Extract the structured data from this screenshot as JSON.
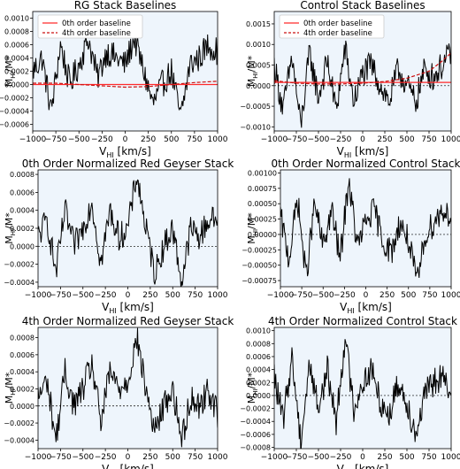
{
  "chart_data": [
    {
      "type": "line",
      "title": "RG Stack Baselines",
      "xlabel": "V",
      "xlabel_sub": "HI",
      "xlabel_unit": " [km/s]",
      "ylabel": "M",
      "ylabel_sub": "HI",
      "ylabel_unit": "/M*",
      "xlim": [
        -1000,
        1000
      ],
      "ylim": [
        -0.0007,
        0.0011
      ],
      "xticks": [
        -1000,
        -750,
        -500,
        -250,
        0,
        250,
        500,
        750,
        1000
      ],
      "yticks": [
        -0.0006,
        -0.0004,
        -0.0002,
        0.0,
        0.0002,
        0.0004,
        0.0006,
        0.0008,
        0.001
      ],
      "ytick_labels": [
        "−0.0006",
        "−0.0004",
        "−0.0002",
        "0.0000",
        "0.0002",
        "0.0004",
        "0.0006",
        "0.0008",
        "0.0010"
      ],
      "grid": false,
      "background": "#eef5fc",
      "zero_line": true,
      "legend": {
        "placement": "top-left",
        "entries": [
          {
            "label": "0th order baseline",
            "color": "#ff2a2a",
            "dash": false
          },
          {
            "label": "4th order baseline",
            "color": "#cc1111",
            "dash": true
          }
        ]
      },
      "baselines": [
        {
          "name": "0th order baseline",
          "color": "#ff2a2a",
          "dash": false,
          "x": [
            -1000,
            1000
          ],
          "y": [
            0.0,
            0.0
          ]
        },
        {
          "name": "4th order baseline",
          "color": "#cc1111",
          "dash": true,
          "x": [
            -1000,
            -750,
            -500,
            -250,
            0,
            250,
            500,
            750,
            1000
          ],
          "y": [
            2e-05,
            2e-05,
            0.0,
            -2e-05,
            -4e-05,
            -3e-05,
            0.0,
            3e-05,
            5e-05
          ]
        }
      ],
      "series": [
        {
          "color": "#000000",
          "x": [
            -1000,
            -900,
            -800,
            -700,
            -600,
            -500,
            -400,
            -300,
            -200,
            -100,
            0,
            100,
            200,
            300,
            400,
            500,
            600,
            700,
            800,
            900,
            1000
          ],
          "y": [
            0.0002,
            0.0004,
            -0.0004,
            0.0006,
            0.0,
            0.0003,
            0.0007,
            0.0001,
            0.0005,
            0.0004,
            0.0003,
            0.0007,
            0.0002,
            -0.0003,
            0.0,
            0.0002,
            -0.0005,
            0.0003,
            0.0004,
            0.0006,
            0.0005
          ]
        }
      ]
    },
    {
      "type": "line",
      "title": "Control Stack Baselines",
      "xlabel": "V",
      "xlabel_sub": "HI",
      "xlabel_unit": " [km/s]",
      "ylabel": "M",
      "ylabel_sub": "HI",
      "ylabel_unit": "/M*",
      "xlim": [
        -1000,
        1000
      ],
      "ylim": [
        -0.0011,
        0.0018
      ],
      "xticks": [
        -1000,
        -750,
        -500,
        -250,
        0,
        250,
        500,
        750,
        1000
      ],
      "yticks": [
        -0.001,
        -0.0005,
        0.0,
        0.0005,
        0.001,
        0.0015
      ],
      "ytick_labels": [
        "−0.0010",
        "−0.0005",
        "0.0000",
        "0.0005",
        "0.0010",
        "0.0015"
      ],
      "grid": false,
      "background": "#eef5fc",
      "zero_line": true,
      "legend": {
        "placement": "top-left",
        "entries": [
          {
            "label": "0th order baseline",
            "color": "#ff2a2a",
            "dash": false
          },
          {
            "label": "4th order baseline",
            "color": "#cc1111",
            "dash": true
          }
        ]
      },
      "baselines": [
        {
          "name": "0th order baseline",
          "color": "#ff2a2a",
          "dash": false,
          "x": [
            -1000,
            1000
          ],
          "y": [
            8e-05,
            8e-05
          ]
        },
        {
          "name": "4th order baseline",
          "color": "#cc1111",
          "dash": true,
          "x": [
            -1000,
            -750,
            -500,
            -250,
            0,
            250,
            500,
            750,
            900,
            1000
          ],
          "y": [
            0.00012,
            6e-05,
            4e-05,
            4e-05,
            6e-05,
            0.0001,
            0.00018,
            0.00035,
            0.0006,
            0.0008
          ]
        }
      ],
      "series": [
        {
          "color": "#000000",
          "x": [
            -1000,
            -900,
            -800,
            -700,
            -600,
            -500,
            -400,
            -300,
            -200,
            -100,
            0,
            100,
            200,
            300,
            400,
            500,
            600,
            700,
            800,
            900,
            1000
          ],
          "y": [
            0.0005,
            -0.0006,
            0.0007,
            -0.001,
            0.0008,
            -0.0003,
            0.0006,
            -0.0006,
            0.0009,
            -0.0004,
            0.0003,
            0.0005,
            0.0,
            -0.0004,
            0.0004,
            0.0,
            -0.0004,
            0.0004,
            0.0002,
            0.0005,
            0.0008
          ]
        }
      ]
    },
    {
      "type": "line",
      "title": "0th Order Normalized Red Geyser Stack",
      "xlabel": "V",
      "xlabel_sub": "HI",
      "xlabel_unit": " [km/s]",
      "ylabel": "M",
      "ylabel_sub": "HI",
      "ylabel_unit": "/M*",
      "xlim": [
        -1000,
        1000
      ],
      "ylim": [
        -0.00045,
        0.00085
      ],
      "xticks": [
        -1000,
        -750,
        -500,
        -250,
        0,
        250,
        500,
        750,
        1000
      ],
      "yticks": [
        -0.0004,
        -0.0002,
        0.0,
        0.0002,
        0.0004,
        0.0006,
        0.0008
      ],
      "ytick_labels": [
        "−0.0004",
        "−0.0002",
        "0.0000",
        "0.0002",
        "0.0004",
        "0.0006",
        "0.0008"
      ],
      "grid": false,
      "background": "#eef5fc",
      "zero_line": true,
      "series": [
        {
          "color": "#000000",
          "x": [
            -1000,
            -900,
            -800,
            -700,
            -600,
            -500,
            -400,
            -300,
            -200,
            -100,
            0,
            100,
            200,
            300,
            400,
            500,
            600,
            700,
            800,
            900,
            1000
          ],
          "y": [
            0.0001,
            0.0003,
            -0.0003,
            0.0004,
            0.0,
            0.0002,
            0.0005,
            -0.0002,
            0.0004,
            0.0001,
            0.0002,
            0.0008,
            0.0002,
            -0.0003,
            0.0,
            0.0002,
            -0.0004,
            0.0002,
            0.0001,
            0.0003,
            0.0003
          ]
        }
      ]
    },
    {
      "type": "line",
      "title": "0th Order Normalized Control Stack",
      "xlabel": "V",
      "xlabel_sub": "HI",
      "xlabel_unit": " [km/s]",
      "ylabel": "M",
      "ylabel_sub": "HI",
      "ylabel_unit": "/M*",
      "xlim": [
        -1000,
        1000
      ],
      "ylim": [
        -0.00085,
        0.00105
      ],
      "xticks": [
        -1000,
        -750,
        -500,
        -250,
        0,
        250,
        500,
        750,
        1000
      ],
      "yticks": [
        -0.00075,
        -0.0005,
        -0.00025,
        0.0,
        0.00025,
        0.0005,
        0.00075,
        0.001
      ],
      "ytick_labels": [
        "−0.00075",
        "−0.00050",
        "−0.00025",
        "0.00000",
        "0.00025",
        "0.00050",
        "0.00075",
        "0.00100"
      ],
      "grid": false,
      "background": "#eef5fc",
      "zero_line": true,
      "series": [
        {
          "color": "#000000",
          "x": [
            -1000,
            -900,
            -800,
            -700,
            -600,
            -500,
            -400,
            -300,
            -200,
            -100,
            0,
            100,
            200,
            300,
            400,
            500,
            600,
            700,
            800,
            900,
            1000
          ],
          "y": [
            0.0003,
            -0.0004,
            0.0006,
            -0.0007,
            0.0005,
            -0.0002,
            0.0004,
            -0.0004,
            0.0009,
            -0.0002,
            0.0002,
            0.0004,
            -0.0001,
            -0.0003,
            0.0002,
            -0.0001,
            -0.0008,
            0.0,
            0.0002,
            0.0004,
            0.0003
          ]
        }
      ]
    },
    {
      "type": "line",
      "title": "4th Order Normalized Red Geyser Stack",
      "xlabel": "V",
      "xlabel_sub": "HI",
      "xlabel_unit": " [km/s]",
      "ylabel": "M",
      "ylabel_sub": "HI",
      "ylabel_unit": "/M*",
      "xlim": [
        -1000,
        1000
      ],
      "ylim": [
        -0.0005,
        0.00092
      ],
      "xticks": [
        -1000,
        -750,
        -500,
        -250,
        0,
        250,
        500,
        750,
        1000
      ],
      "yticks": [
        -0.0004,
        -0.0002,
        0.0,
        0.0002,
        0.0004,
        0.0006,
        0.0008
      ],
      "ytick_labels": [
        "−0.0004",
        "−0.0002",
        "0.0000",
        "0.0002",
        "0.0004",
        "0.0006",
        "0.0008"
      ],
      "grid": false,
      "background": "#eef5fc",
      "zero_line": true,
      "series": [
        {
          "color": "#000000",
          "x": [
            -1000,
            -900,
            -800,
            -700,
            -600,
            -500,
            -400,
            -300,
            -200,
            -100,
            0,
            100,
            200,
            300,
            400,
            500,
            600,
            700,
            800,
            900,
            1000
          ],
          "y": [
            0.0001,
            0.0003,
            -0.0004,
            0.0004,
            0.0,
            0.0002,
            0.0005,
            -0.0002,
            0.0004,
            0.0002,
            0.0003,
            0.0008,
            0.0002,
            -0.0003,
            0.0,
            0.0002,
            -0.0004,
            0.0001,
            0.0,
            0.0002,
            -0.0001
          ]
        }
      ]
    },
    {
      "type": "line",
      "title": "4th Order Normalized Control Stack",
      "xlabel": "V",
      "xlabel_sub": "HI",
      "xlabel_unit": " [km/s]",
      "ylabel": "M",
      "ylabel_sub": "HI",
      "ylabel_unit": "/M*",
      "xlim": [
        -1000,
        1000
      ],
      "ylim": [
        -0.00082,
        0.00105
      ],
      "xticks": [
        -1000,
        -750,
        -500,
        -250,
        0,
        250,
        500,
        750,
        1000
      ],
      "yticks": [
        -0.0008,
        -0.0006,
        -0.0004,
        -0.0002,
        0.0,
        0.0002,
        0.0004,
        0.0006,
        0.0008,
        0.001
      ],
      "ytick_labels": [
        "−0.0008",
        "−0.0006",
        "−0.0004",
        "−0.0002",
        "0.0000",
        "0.0002",
        "0.0004",
        "0.0006",
        "0.0008",
        "0.0010"
      ],
      "grid": false,
      "background": "#eef5fc",
      "zero_line": true,
      "series": [
        {
          "color": "#000000",
          "x": [
            -1000,
            -900,
            -800,
            -700,
            -600,
            -500,
            -400,
            -300,
            -200,
            -100,
            0,
            100,
            200,
            300,
            400,
            500,
            600,
            700,
            800,
            900,
            1000
          ],
          "y": [
            0.0003,
            -0.0004,
            0.0006,
            -0.0007,
            0.0005,
            -0.0002,
            0.0004,
            -0.0004,
            0.0009,
            -0.0002,
            0.0002,
            0.0004,
            -0.0001,
            -0.0003,
            0.0002,
            -0.0001,
            -0.0006,
            0.0,
            0.0002,
            0.0003,
            -0.0001
          ]
        }
      ]
    }
  ]
}
